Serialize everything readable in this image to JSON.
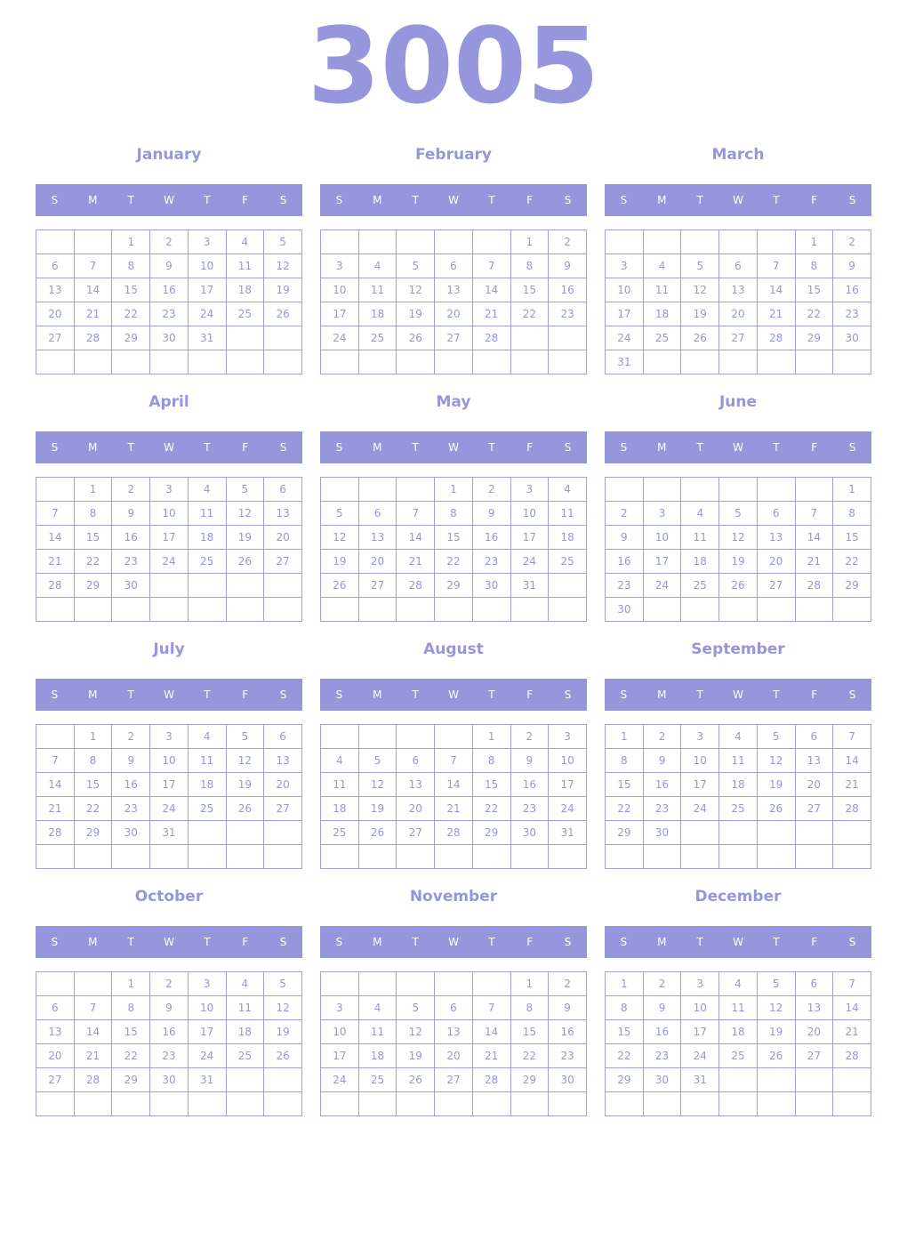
{
  "year": "3005",
  "colors": {
    "accent": "#9696dc",
    "header_text": "#ffffff"
  },
  "weekdays": [
    "S",
    "M",
    "T",
    "W",
    "T",
    "F",
    "S"
  ],
  "months": [
    {
      "name": "January",
      "weeks": [
        [
          null,
          null,
          1,
          2,
          3,
          4,
          5
        ],
        [
          6,
          7,
          8,
          9,
          10,
          11,
          12
        ],
        [
          13,
          14,
          15,
          16,
          17,
          18,
          19
        ],
        [
          20,
          21,
          22,
          23,
          24,
          25,
          26
        ],
        [
          27,
          28,
          29,
          30,
          31,
          null,
          null
        ],
        [
          null,
          null,
          null,
          null,
          null,
          null,
          null
        ]
      ]
    },
    {
      "name": "February",
      "weeks": [
        [
          null,
          null,
          null,
          null,
          null,
          1,
          2
        ],
        [
          3,
          4,
          5,
          6,
          7,
          8,
          9
        ],
        [
          10,
          11,
          12,
          13,
          14,
          15,
          16
        ],
        [
          17,
          18,
          19,
          20,
          21,
          22,
          23
        ],
        [
          24,
          25,
          26,
          27,
          28,
          null,
          null
        ],
        [
          null,
          null,
          null,
          null,
          null,
          null,
          null
        ]
      ]
    },
    {
      "name": "March",
      "weeks": [
        [
          null,
          null,
          null,
          null,
          null,
          1,
          2
        ],
        [
          3,
          4,
          5,
          6,
          7,
          8,
          9
        ],
        [
          10,
          11,
          12,
          13,
          14,
          15,
          16
        ],
        [
          17,
          18,
          19,
          20,
          21,
          22,
          23
        ],
        [
          24,
          25,
          26,
          27,
          28,
          29,
          30
        ],
        [
          31,
          null,
          null,
          null,
          null,
          null,
          null
        ]
      ]
    },
    {
      "name": "April",
      "weeks": [
        [
          null,
          1,
          2,
          3,
          4,
          5,
          6
        ],
        [
          7,
          8,
          9,
          10,
          11,
          12,
          13
        ],
        [
          14,
          15,
          16,
          17,
          18,
          19,
          20
        ],
        [
          21,
          22,
          23,
          24,
          25,
          26,
          27
        ],
        [
          28,
          29,
          30,
          null,
          null,
          null,
          null
        ],
        [
          null,
          null,
          null,
          null,
          null,
          null,
          null
        ]
      ]
    },
    {
      "name": "May",
      "weeks": [
        [
          null,
          null,
          null,
          1,
          2,
          3,
          4
        ],
        [
          5,
          6,
          7,
          8,
          9,
          10,
          11
        ],
        [
          12,
          13,
          14,
          15,
          16,
          17,
          18
        ],
        [
          19,
          20,
          21,
          22,
          23,
          24,
          25
        ],
        [
          26,
          27,
          28,
          29,
          30,
          31,
          null
        ],
        [
          null,
          null,
          null,
          null,
          null,
          null,
          null
        ]
      ]
    },
    {
      "name": "June",
      "weeks": [
        [
          null,
          null,
          null,
          null,
          null,
          null,
          1
        ],
        [
          2,
          3,
          4,
          5,
          6,
          7,
          8
        ],
        [
          9,
          10,
          11,
          12,
          13,
          14,
          15
        ],
        [
          16,
          17,
          18,
          19,
          20,
          21,
          22
        ],
        [
          23,
          24,
          25,
          26,
          27,
          28,
          29
        ],
        [
          30,
          null,
          null,
          null,
          null,
          null,
          null
        ]
      ]
    },
    {
      "name": "July",
      "weeks": [
        [
          null,
          1,
          2,
          3,
          4,
          5,
          6
        ],
        [
          7,
          8,
          9,
          10,
          11,
          12,
          13
        ],
        [
          14,
          15,
          16,
          17,
          18,
          19,
          20
        ],
        [
          21,
          22,
          23,
          24,
          25,
          26,
          27
        ],
        [
          28,
          29,
          30,
          31,
          null,
          null,
          null
        ],
        [
          null,
          null,
          null,
          null,
          null,
          null,
          null
        ]
      ]
    },
    {
      "name": "August",
      "weeks": [
        [
          null,
          null,
          null,
          null,
          1,
          2,
          3
        ],
        [
          4,
          5,
          6,
          7,
          8,
          9,
          10
        ],
        [
          11,
          12,
          13,
          14,
          15,
          16,
          17
        ],
        [
          18,
          19,
          20,
          21,
          22,
          23,
          24
        ],
        [
          25,
          26,
          27,
          28,
          29,
          30,
          31
        ],
        [
          null,
          null,
          null,
          null,
          null,
          null,
          null
        ]
      ]
    },
    {
      "name": "September",
      "weeks": [
        [
          1,
          2,
          3,
          4,
          5,
          6,
          7
        ],
        [
          8,
          9,
          10,
          11,
          12,
          13,
          14
        ],
        [
          15,
          16,
          17,
          18,
          19,
          20,
          21
        ],
        [
          22,
          23,
          24,
          25,
          26,
          27,
          28
        ],
        [
          29,
          30,
          null,
          null,
          null,
          null,
          null
        ],
        [
          null,
          null,
          null,
          null,
          null,
          null,
          null
        ]
      ]
    },
    {
      "name": "October",
      "weeks": [
        [
          null,
          null,
          1,
          2,
          3,
          4,
          5
        ],
        [
          6,
          7,
          8,
          9,
          10,
          11,
          12
        ],
        [
          13,
          14,
          15,
          16,
          17,
          18,
          19
        ],
        [
          20,
          21,
          22,
          23,
          24,
          25,
          26
        ],
        [
          27,
          28,
          29,
          30,
          31,
          null,
          null
        ],
        [
          null,
          null,
          null,
          null,
          null,
          null,
          null
        ]
      ]
    },
    {
      "name": "November",
      "weeks": [
        [
          null,
          null,
          null,
          null,
          null,
          1,
          2
        ],
        [
          3,
          4,
          5,
          6,
          7,
          8,
          9
        ],
        [
          10,
          11,
          12,
          13,
          14,
          15,
          16
        ],
        [
          17,
          18,
          19,
          20,
          21,
          22,
          23
        ],
        [
          24,
          25,
          26,
          27,
          28,
          29,
          30
        ],
        [
          null,
          null,
          null,
          null,
          null,
          null,
          null
        ]
      ]
    },
    {
      "name": "December",
      "weeks": [
        [
          1,
          2,
          3,
          4,
          5,
          6,
          7
        ],
        [
          8,
          9,
          10,
          11,
          12,
          13,
          14
        ],
        [
          15,
          16,
          17,
          18,
          19,
          20,
          21
        ],
        [
          22,
          23,
          24,
          25,
          26,
          27,
          28
        ],
        [
          29,
          30,
          31,
          null,
          null,
          null,
          null
        ],
        [
          null,
          null,
          null,
          null,
          null,
          null,
          null
        ]
      ]
    }
  ]
}
